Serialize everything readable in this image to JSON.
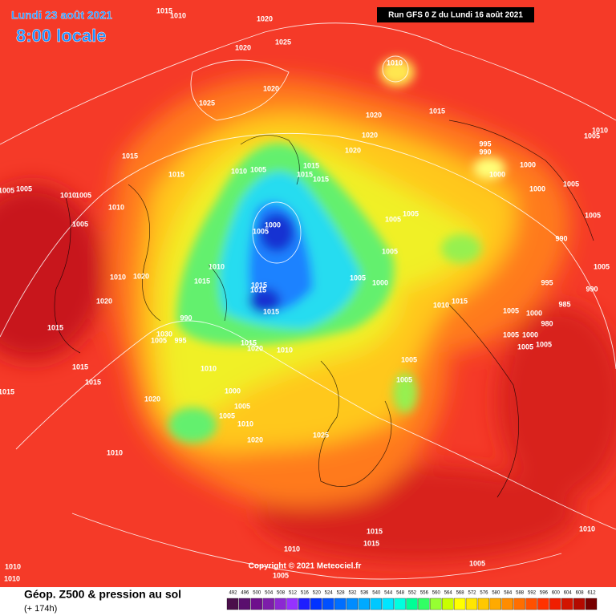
{
  "header": {
    "date": "Lundi 23 août 2021",
    "time": "8:00 locale",
    "run": "Run GFS 0 Z du Lundi 16 août 2021"
  },
  "copyright": "Copyright © 2021 Meteociel.fr",
  "legend": {
    "title": "Géop. Z500 & pression au sol",
    "lead": "(+ 174h)",
    "scale": {
      "values": [
        492,
        496,
        500,
        504,
        508,
        512,
        516,
        520,
        524,
        528,
        532,
        536,
        540,
        544,
        548,
        552,
        556,
        560,
        564,
        568,
        572,
        576,
        580,
        584,
        588,
        592,
        596,
        600,
        604,
        608,
        612
      ],
      "colors": [
        "#4b0f4b",
        "#5a0f6e",
        "#6e0f8c",
        "#7d1eaa",
        "#8c28d2",
        "#9632ff",
        "#1e1eff",
        "#0032ff",
        "#0050ff",
        "#006eff",
        "#008cff",
        "#00aaff",
        "#00c8ff",
        "#00e6ff",
        "#00ffe0",
        "#00ff96",
        "#32ff64",
        "#96ff32",
        "#c8ff00",
        "#ffff00",
        "#ffe600",
        "#ffc800",
        "#ffaa00",
        "#ff8c00",
        "#ff6e00",
        "#ff5000",
        "#ff3200",
        "#f01e00",
        "#d21400",
        "#b40a00",
        "#780000"
      ]
    }
  },
  "isobar_labels": [
    1015,
    1010,
    1020,
    1020,
    1025,
    1010,
    1020,
    1025,
    1015,
    1020,
    1020,
    1020,
    995,
    990,
    1000,
    1000,
    1015,
    1015,
    1010,
    1005,
    1015,
    1015,
    1015,
    1005,
    1005,
    1010,
    1005,
    1000,
    1005,
    1005,
    1010,
    1010,
    1005,
    1005,
    1005,
    1000,
    1005,
    1005,
    990,
    1005,
    1010,
    1005,
    1005,
    1000,
    1015,
    1010,
    1020,
    1015,
    1015,
    995,
    990,
    1020,
    1010,
    1015,
    1015,
    1005,
    1000,
    985,
    990,
    1005,
    1000,
    980,
    1015,
    1030,
    1005,
    995,
    1005,
    1005,
    1015,
    1020,
    1010,
    1005,
    1010,
    1015,
    1015,
    1005,
    1015,
    1000,
    1020,
    1005,
    1005,
    1010,
    1025,
    1020,
    1010,
    1015,
    1015,
    1010,
    1010,
    1005,
    1010,
    1005,
    1010
  ]
}
